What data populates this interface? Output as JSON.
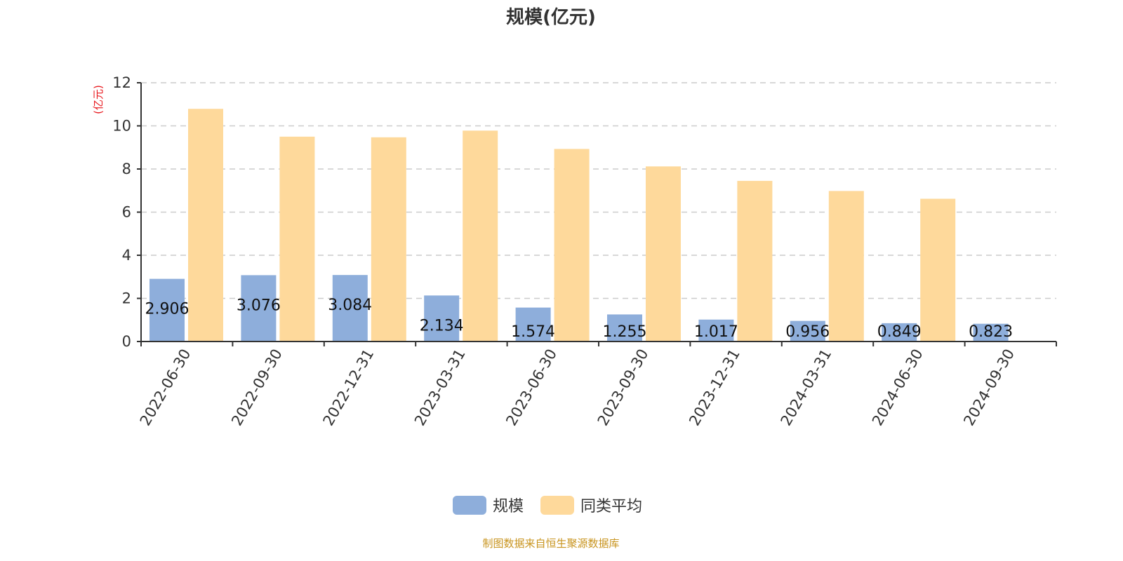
{
  "chart_data": {
    "type": "bar",
    "title": "规模(亿元)",
    "ylabel": "(亿元)",
    "xlabel": "",
    "ylim": [
      0,
      12
    ],
    "yticks": [
      0,
      2,
      4,
      6,
      8,
      10,
      12
    ],
    "grid": true,
    "legend_position": "bottom",
    "categories": [
      "2022-06-30",
      "2022-09-30",
      "2022-12-31",
      "2023-03-31",
      "2023-06-30",
      "2023-09-30",
      "2023-12-31",
      "2024-03-31",
      "2024-06-30",
      "2024-09-30"
    ],
    "series": [
      {
        "name": "规模",
        "color": "#8eaedb",
        "values": [
          2.906,
          3.076,
          3.084,
          2.134,
          1.574,
          1.255,
          1.017,
          0.956,
          0.849,
          0.823
        ],
        "data_labels": true
      },
      {
        "name": "同类平均",
        "color": "#fed99b",
        "values": [
          10.79,
          9.5,
          9.47,
          9.78,
          8.93,
          8.12,
          7.45,
          6.98,
          6.62,
          null
        ],
        "data_labels": false
      }
    ]
  },
  "footer": {
    "source": "制图数据来自恒生聚源数据库",
    "color": "#c8941e"
  }
}
